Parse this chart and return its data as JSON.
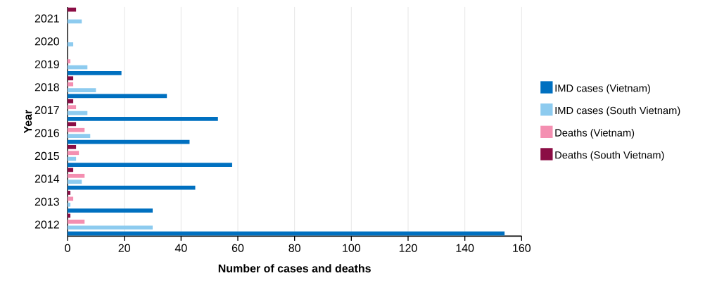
{
  "chart_data": {
    "type": "bar",
    "orientation": "horizontal",
    "xlabel": "Number of cases and deaths",
    "ylabel": "Year",
    "categories": [
      "2021",
      "2020",
      "2019",
      "2018",
      "2017",
      "2016",
      "2015",
      "2014",
      "2013",
      "2012"
    ],
    "series": [
      {
        "name": "IMD cases (Vietnam)",
        "color": "#0070c0",
        "values": [
          0,
          0,
          19,
          35,
          53,
          43,
          58,
          45,
          30,
          154
        ]
      },
      {
        "name": "IMD cases (South Vietnam)",
        "color": "#8dcbef",
        "values": [
          5,
          2,
          7,
          10,
          7,
          8,
          3,
          5,
          1,
          30
        ]
      },
      {
        "name": "Deaths (Vietnam)",
        "color": "#f48fb1",
        "values": [
          0,
          0,
          1,
          2,
          3,
          6,
          4,
          6,
          2,
          6
        ]
      },
      {
        "name": "Deaths (South Vietnam)",
        "color": "#8b0d45",
        "values": [
          3,
          0,
          0,
          2,
          2,
          3,
          3,
          2,
          1,
          1
        ]
      }
    ],
    "xlim": [
      0,
      160
    ],
    "xticks": [
      0,
      20,
      40,
      60,
      80,
      100,
      120,
      140,
      160
    ],
    "grid": "x",
    "legend": "right"
  }
}
